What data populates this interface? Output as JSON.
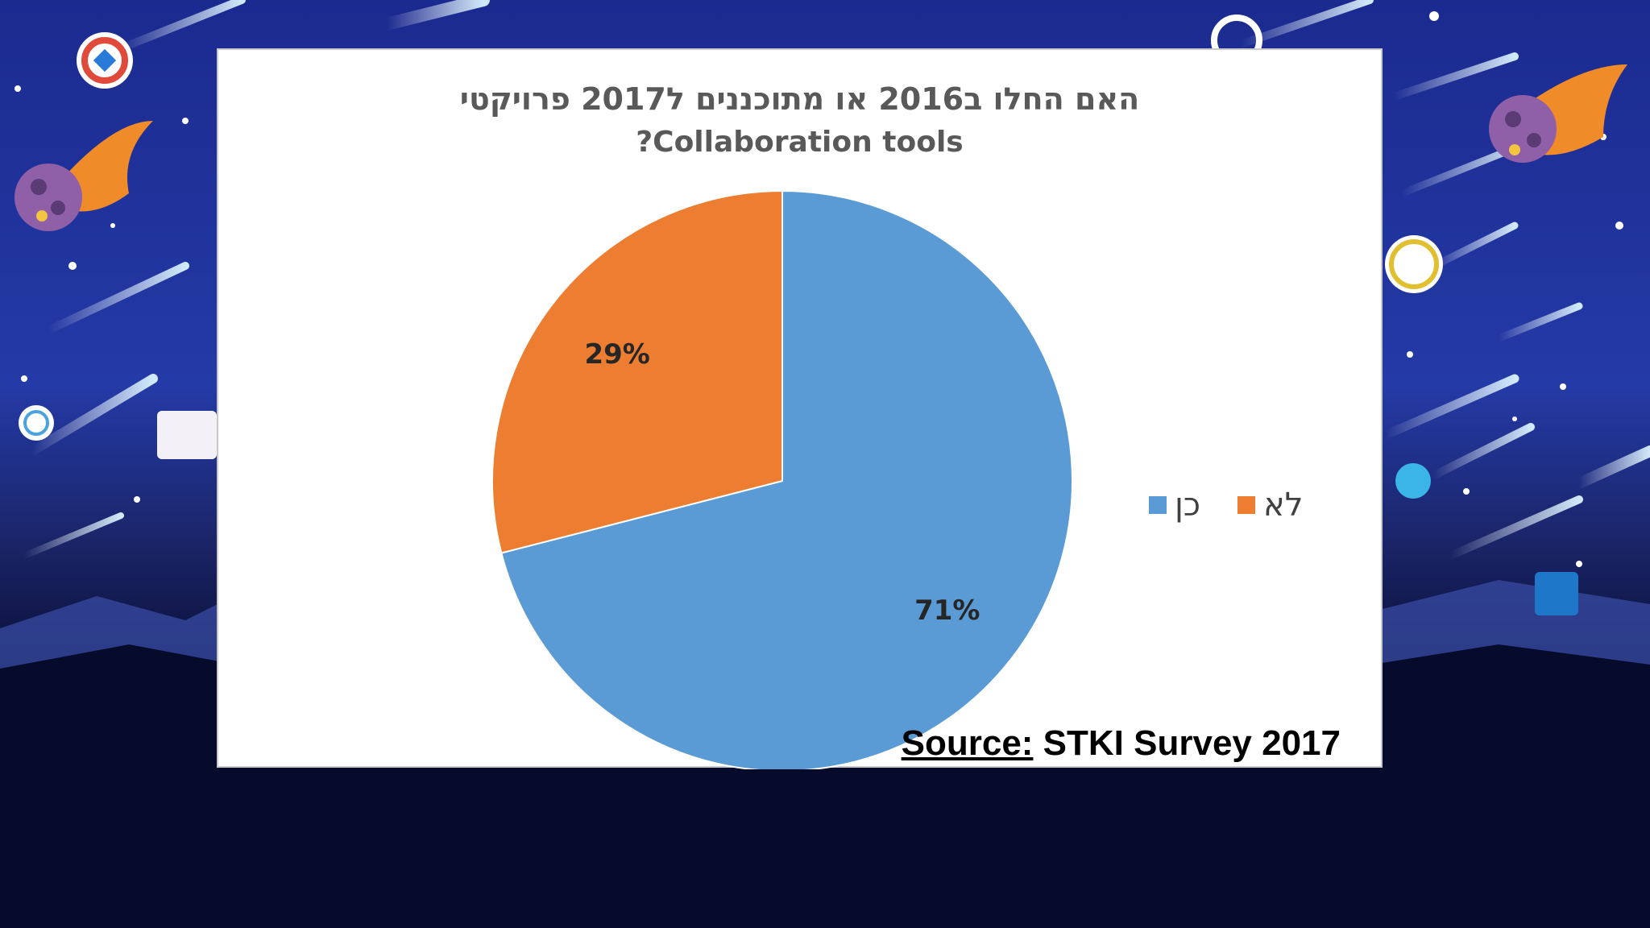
{
  "slide": {
    "source_prefix": "Source:",
    "source_text": " STKI Survey 2017"
  },
  "chart_data": {
    "type": "pie",
    "title": "האם החלו ב2016 או מתוכננים ל2017 פרויקטי",
    "subtitle": "?Collaboration tools",
    "legend_position": "right",
    "slices": [
      {
        "label": "כן",
        "value": 71,
        "data_label": "71%",
        "color": "#5b9bd5"
      },
      {
        "label": "לא",
        "value": 29,
        "data_label": "29%",
        "color": "#ed7d31"
      }
    ],
    "colors": {
      "background": "#050a2a",
      "panel": "#ffffff"
    }
  }
}
